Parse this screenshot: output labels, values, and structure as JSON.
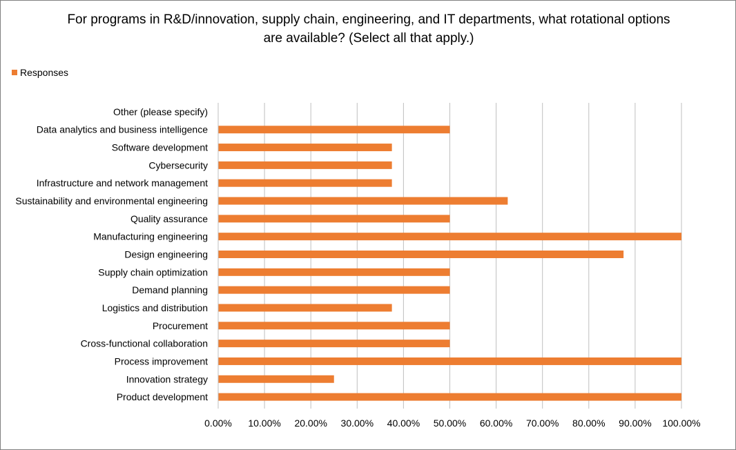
{
  "chart_data": {
    "type": "bar",
    "orientation": "horizontal",
    "title_lines": [
      "For programs in R&D/innovation, supply chain, engineering, and IT departments, what rotational options",
      "are available? (Select all that apply.)"
    ],
    "legend": {
      "position": "top-left",
      "entries": [
        "Responses"
      ]
    },
    "categories": [
      "Other (please specify)",
      "Data analytics and business intelligence",
      "Software development",
      "Cybersecurity",
      "Infrastructure and network management",
      "Sustainability and environmental engineering",
      "Quality assurance",
      "Manufacturing engineering",
      "Design engineering",
      "Supply chain optimization",
      "Demand planning",
      "Logistics and distribution",
      "Procurement",
      "Cross-functional collaboration",
      "Process improvement",
      "Innovation strategy",
      "Product development"
    ],
    "series": [
      {
        "name": "Responses",
        "color": "#ed7d31",
        "values": [
          0,
          0.5,
          0.375,
          0.375,
          0.375,
          0.625,
          0.5,
          1.0,
          0.875,
          0.5,
          0.5,
          0.375,
          0.5,
          0.5,
          1.0,
          0.25,
          1.0
        ]
      }
    ],
    "xlim": [
      0,
      1
    ],
    "x_ticks": [
      "0.00%",
      "10.00%",
      "20.00%",
      "30.00%",
      "40.00%",
      "50.00%",
      "60.00%",
      "70.00%",
      "80.00%",
      "90.00%",
      "100.00%"
    ],
    "grid": true
  }
}
